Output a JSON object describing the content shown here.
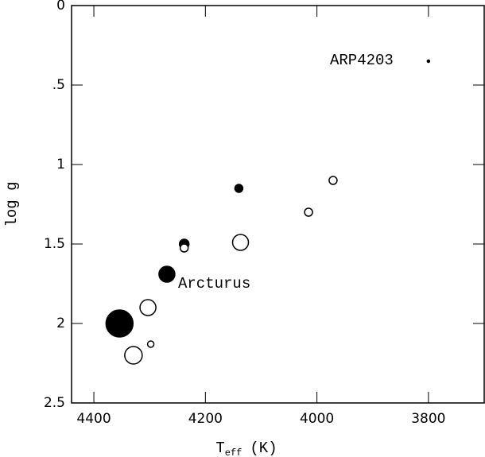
{
  "chart_data": {
    "type": "scatter",
    "xlabel": {
      "main": "T",
      "sub": "eff",
      "unit": "(K)"
    },
    "ylabel": "log g",
    "xlim": [
      4440,
      3700
    ],
    "ylim": [
      0,
      2.5
    ],
    "xticks": [
      4400,
      4200,
      4000,
      3800
    ],
    "yticks": [
      0,
      {
        "value": 0.5,
        "label": ".5"
      },
      1,
      1.5,
      2,
      2.5
    ],
    "series": [
      {
        "style": "filled",
        "color": "#000000",
        "x": [
          4354,
          4269,
          4238,
          4140,
          3800
        ],
        "values": [
          2.0,
          1.69,
          1.5,
          1.15,
          0.35
        ],
        "sizes": [
          17,
          10,
          6,
          5,
          1.5
        ]
      },
      {
        "style": "open",
        "color": "#000000",
        "x": [
          4329,
          4303,
          4298,
          4238,
          4137,
          4015,
          3971
        ],
        "values": [
          2.2,
          1.9,
          2.13,
          1.525,
          1.49,
          1.3,
          1.1
        ],
        "sizes": [
          11,
          10,
          4,
          5,
          10,
          5,
          5
        ]
      }
    ],
    "annotations": [
      "ARP4203",
      "Arcturus"
    ]
  }
}
